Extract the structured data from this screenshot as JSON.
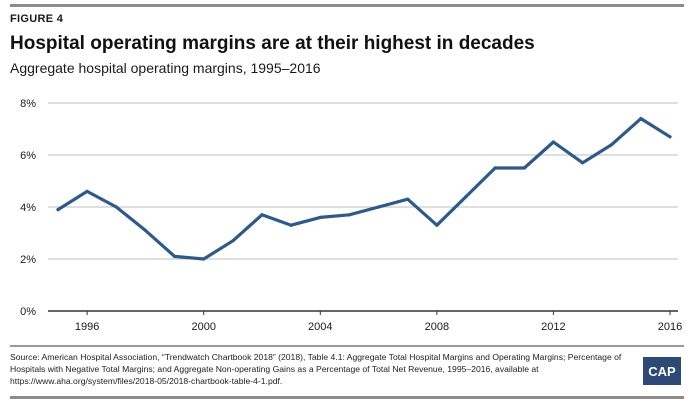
{
  "figure_label": "FIGURE 4",
  "source_text": "Source: American Hospital Association, “Trendwatch Chartbook 2018” (2018), Table 4.1: Aggregate Total Hospital Margins and Operating Margins; Percentage of Hospitals with Negative Total Margins; and Aggregate Non-operating Gains as a Percentage of Total Net Revenue, 1995–2016, available at https://www.aha.org/system/files/2018-05/2018-chartbook-table-4-1.pdf.",
  "logo_text": "CAP",
  "colors": {
    "line": "#2c5a8c",
    "grid": "#bfbfbf",
    "axis": "#333333",
    "logo_bg": "#2c4a75"
  },
  "chart_data": {
    "type": "line",
    "title": "Hospital operating margins are at their highest in decades",
    "subtitle": "Aggregate hospital operating margins, 1995–2016",
    "xlabel": "",
    "ylabel": "",
    "x": [
      1995,
      1996,
      1997,
      1998,
      1999,
      2000,
      2001,
      2002,
      2003,
      2004,
      2005,
      2006,
      2007,
      2008,
      2009,
      2010,
      2011,
      2012,
      2013,
      2014,
      2015,
      2016
    ],
    "series": [
      {
        "values": [
          3.9,
          4.6,
          4.0,
          3.1,
          2.1,
          2.0,
          2.7,
          3.7,
          3.3,
          3.6,
          3.7,
          4.0,
          4.3,
          3.3,
          4.4,
          5.5,
          5.5,
          6.5,
          5.7,
          6.4,
          7.4,
          6.7
        ]
      }
    ],
    "ylim": [
      0,
      8
    ],
    "xlim": [
      1995,
      2016
    ],
    "yticks": [
      0,
      2,
      4,
      6,
      8
    ],
    "ytick_labels": [
      "0%",
      "2%",
      "4%",
      "6%",
      "8%"
    ],
    "xticks": [
      1996,
      2000,
      2004,
      2008,
      2012,
      2016
    ],
    "xtick_labels": [
      "1996",
      "2000",
      "2004",
      "2008",
      "2012",
      "2016"
    ],
    "grid": true,
    "legend": "none"
  }
}
